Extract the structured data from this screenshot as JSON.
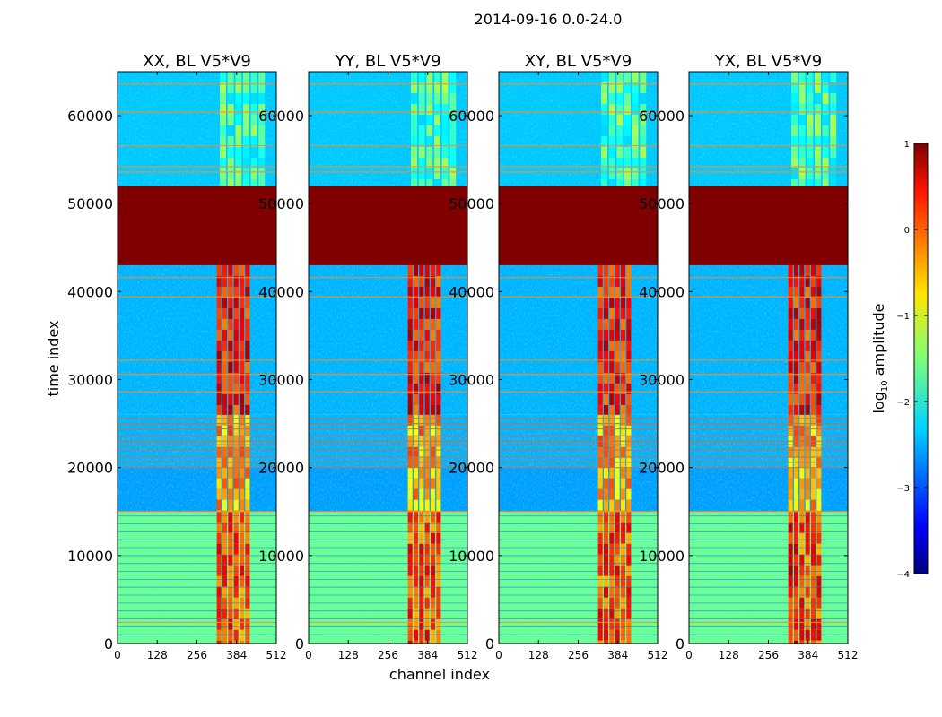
{
  "figure": {
    "suptitle": "2014-09-16 0.0-24.0"
  },
  "chart_data": {
    "type": "heatmap",
    "xlabel": "channel index",
    "ylabel": "time index",
    "xlim": [
      0,
      512
    ],
    "ylim": [
      0,
      65000
    ],
    "xticks": [
      0,
      128,
      256,
      384,
      512
    ],
    "yticks": [
      0,
      10000,
      20000,
      30000,
      40000,
      50000,
      60000
    ],
    "ytick_labels": [
      "0",
      "10000",
      "20000",
      "30000",
      "40000",
      "50000",
      "60000"
    ],
    "panels": [
      {
        "title": "XX, BL V5*V9"
      },
      {
        "title": "YY, BL V5*V9"
      },
      {
        "title": "XY, BL V5*V9"
      },
      {
        "title": "YX, BL V5*V9"
      }
    ],
    "colorbar": {
      "label_prefix": "log",
      "label_subscript": "10",
      "label_suffix": " amplitude",
      "range": [
        -4,
        1
      ],
      "ticks": [
        1,
        0,
        -1,
        -2,
        -3,
        -4
      ],
      "tick_labels": [
        "1",
        "0",
        "−1",
        "−2",
        "−3",
        "−4"
      ],
      "colormap": "jet"
    },
    "time_bands": [
      {
        "t0": 0,
        "t1": 15000,
        "background_log10": -1.6,
        "rfi_channels": [
          320,
          430
        ],
        "rfi_log10": 0.0
      },
      {
        "t0": 15000,
        "t1": 20000,
        "background_log10": -2.6,
        "rfi_channels": [
          320,
          430
        ],
        "rfi_log10": -0.5
      },
      {
        "t0": 20000,
        "t1": 26000,
        "background_log10": -2.5,
        "rfi_channels": [
          320,
          430
        ],
        "rfi_log10": -0.4
      },
      {
        "t0": 26000,
        "t1": 43000,
        "background_log10": -2.5,
        "rfi_channels": [
          320,
          430
        ],
        "rfi_log10": 0.3
      },
      {
        "t0": 43000,
        "t1": 52000,
        "background_log10": 1.0
      },
      {
        "t0": 52000,
        "t1": 65000,
        "background_log10": -2.4,
        "rfi_channels": [
          330,
          480
        ],
        "rfi_log10": -1.8
      }
    ]
  }
}
